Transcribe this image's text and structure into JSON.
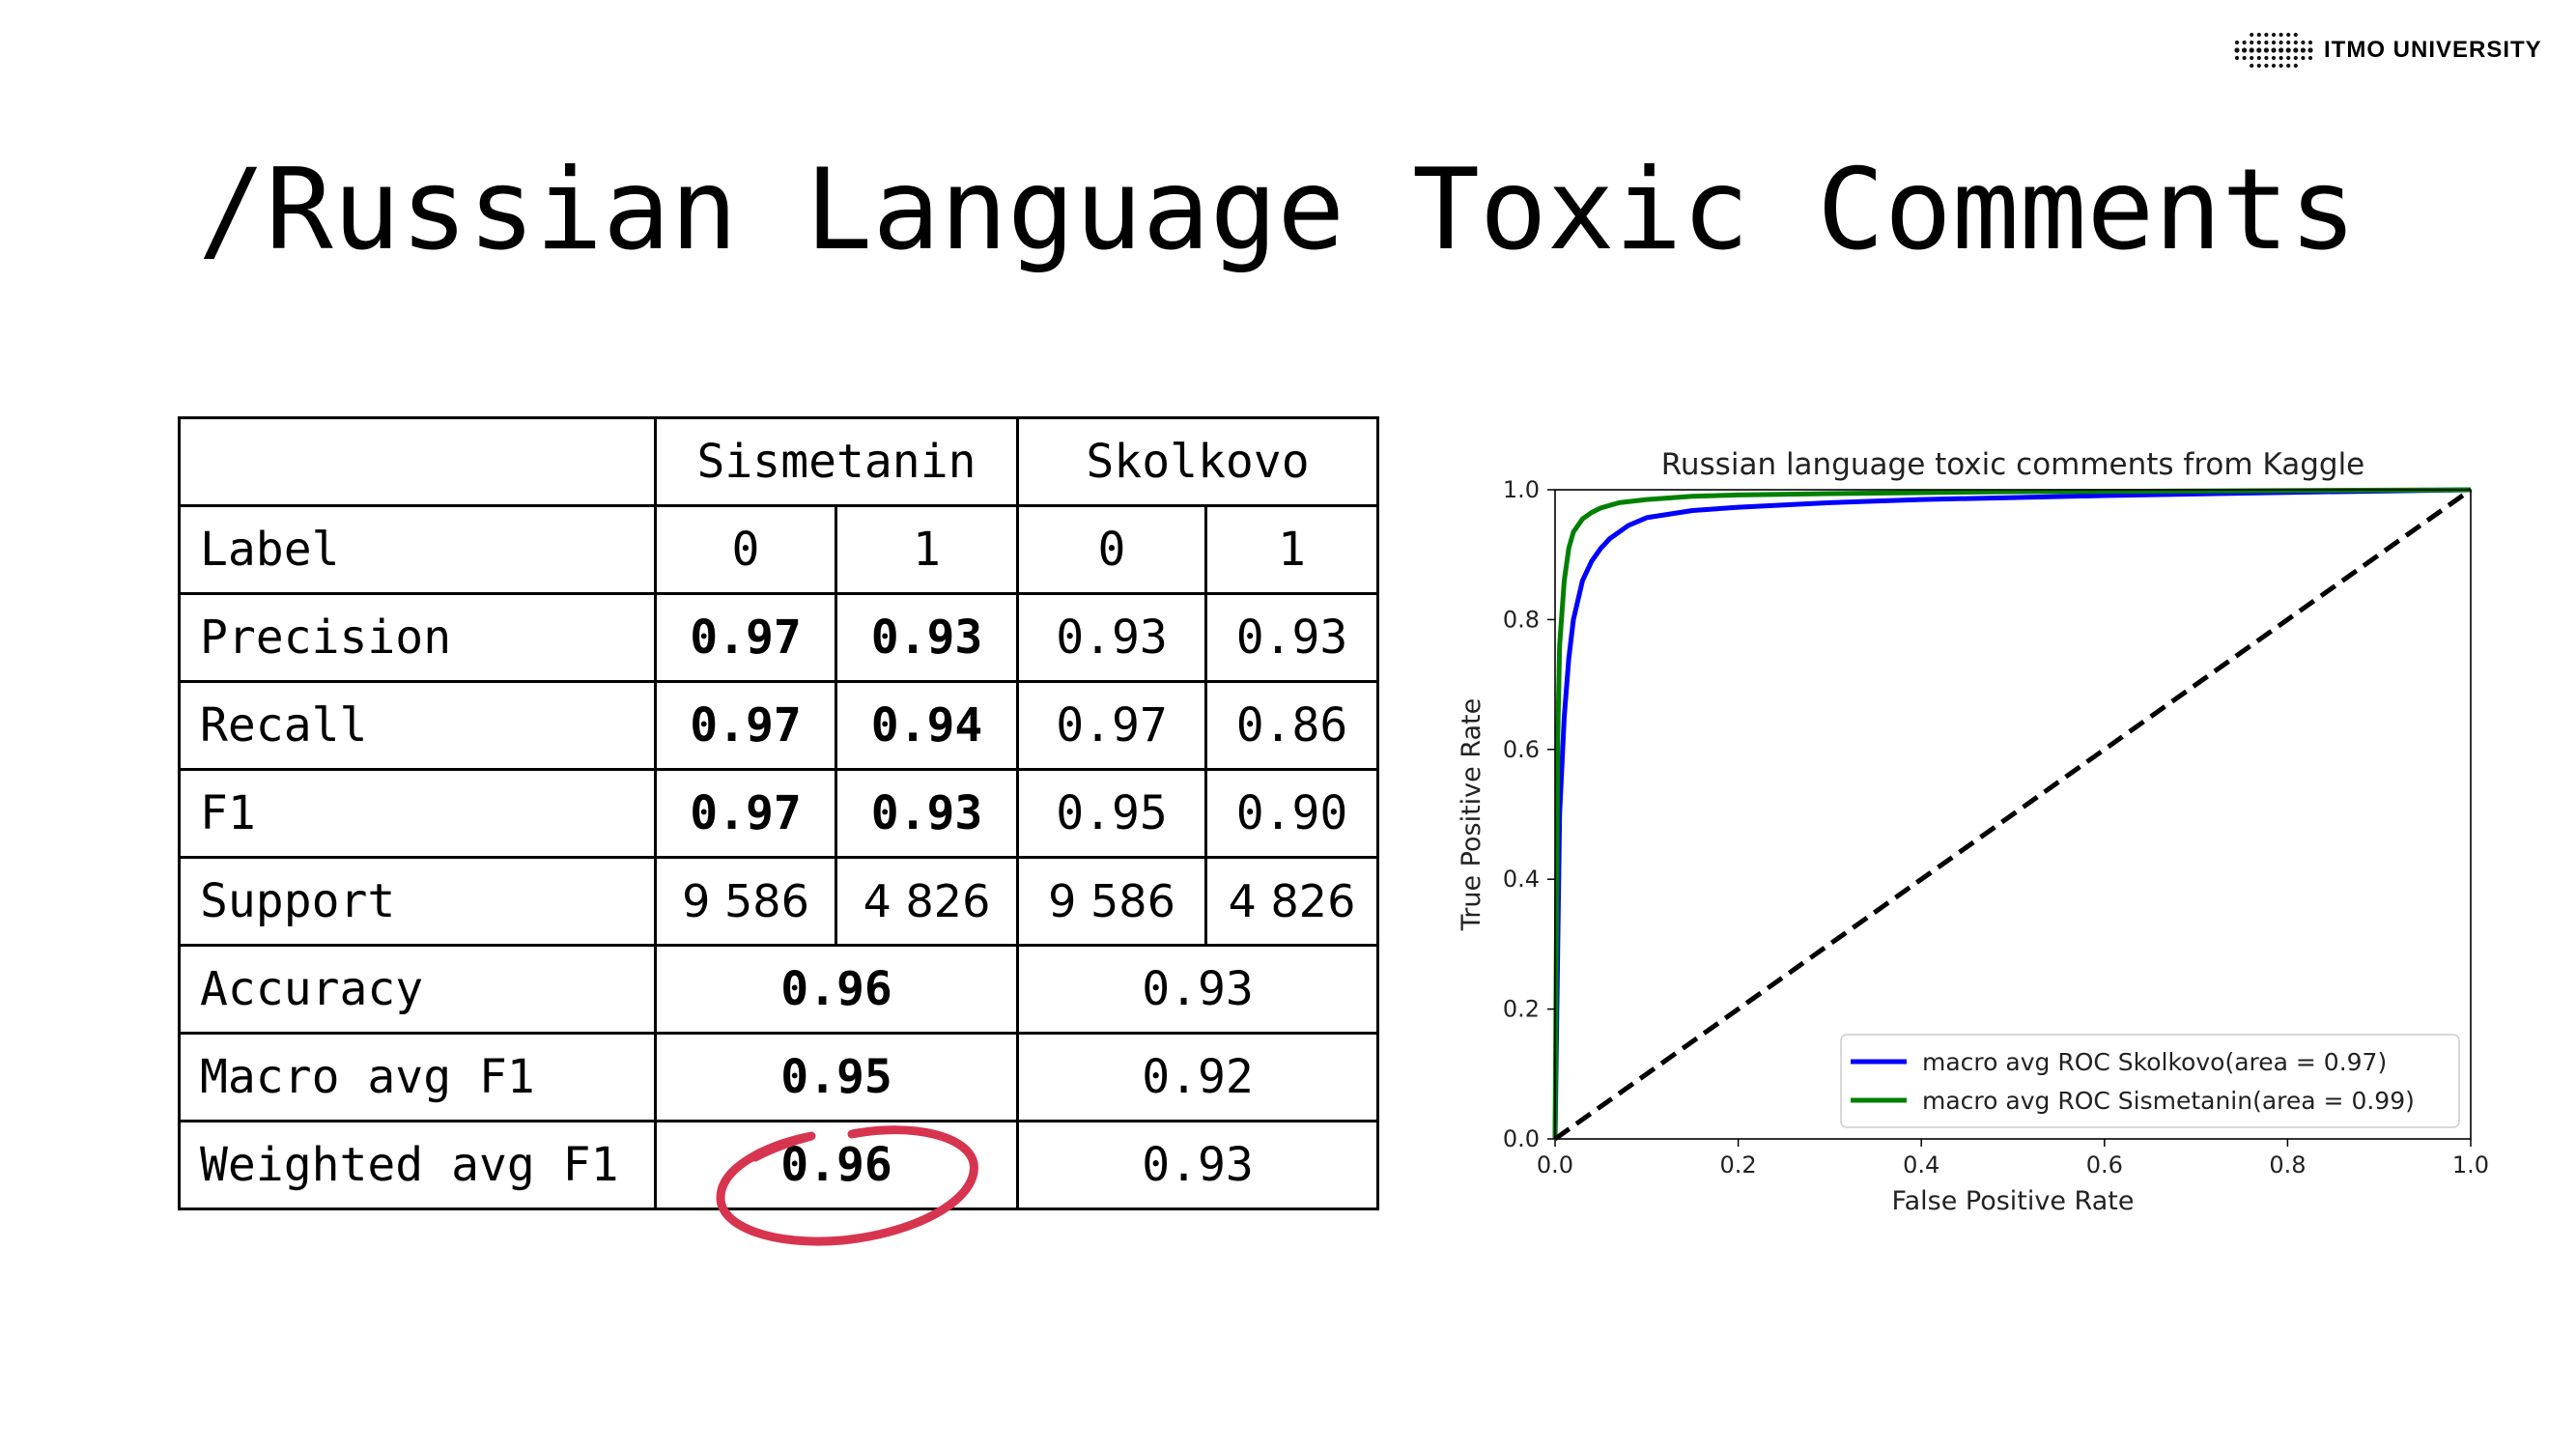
{
  "logo": {
    "text": "ITMO UNIVERSITY",
    "icon": "itmo-dots-logo-icon"
  },
  "title": "/Russian Language Toxic Comments",
  "table": {
    "models": [
      "Sismetanin",
      "Skolkovo"
    ],
    "label_row": {
      "name": "Label",
      "values": [
        "0",
        "1",
        "0",
        "1"
      ]
    },
    "class_rows": [
      {
        "name": "Precision",
        "values": [
          "0.97",
          "0.93",
          "0.93",
          "0.93"
        ]
      },
      {
        "name": "Recall",
        "values": [
          "0.97",
          "0.94",
          "0.97",
          "0.86"
        ]
      },
      {
        "name": "F1",
        "values": [
          "0.97",
          "0.93",
          "0.95",
          "0.90"
        ]
      },
      {
        "name": "Support",
        "values": [
          "9 586",
          "4 826",
          "9 586",
          "4 826"
        ]
      }
    ],
    "summary_rows": [
      {
        "name": "Accuracy",
        "values": [
          "0.96",
          "0.93"
        ]
      },
      {
        "name": "Macro avg F1",
        "values": [
          "0.95",
          "0.92"
        ]
      },
      {
        "name": "Weighted avg F1",
        "values": [
          "0.96",
          "0.93"
        ]
      }
    ],
    "highlight_color": "#d7354f"
  },
  "chart_data": {
    "type": "line",
    "title": "Russian language toxic comments from Kaggle",
    "xlabel": "False Positive Rate",
    "ylabel": "True Positive Rate",
    "xlim": [
      0,
      1
    ],
    "ylim": [
      0,
      1
    ],
    "xticks": [
      "0.0",
      "0.2",
      "0.4",
      "0.6",
      "0.8",
      "1.0"
    ],
    "yticks": [
      "0.0",
      "0.2",
      "0.4",
      "0.6",
      "0.8",
      "1.0"
    ],
    "grid": false,
    "legend_position": "bottom-right",
    "series": [
      {
        "name": "macro avg ROC Skolkovo(area = 0.97)",
        "color": "#0000ff",
        "x": [
          0,
          0.005,
          0.01,
          0.015,
          0.02,
          0.03,
          0.04,
          0.05,
          0.06,
          0.08,
          0.1,
          0.15,
          0.2,
          0.3,
          0.4,
          0.5,
          0.6,
          0.8,
          1.0
        ],
        "y": [
          0,
          0.5,
          0.65,
          0.74,
          0.8,
          0.86,
          0.89,
          0.91,
          0.925,
          0.945,
          0.957,
          0.968,
          0.973,
          0.98,
          0.985,
          0.988,
          0.991,
          0.996,
          1.0
        ]
      },
      {
        "name": "macro avg ROC Sismetanin(area = 0.99)",
        "color": "#008000",
        "x": [
          0,
          0.003,
          0.005,
          0.01,
          0.015,
          0.02,
          0.03,
          0.04,
          0.05,
          0.07,
          0.1,
          0.15,
          0.2,
          0.3,
          0.5,
          0.7,
          1.0
        ],
        "y": [
          0,
          0.62,
          0.76,
          0.86,
          0.91,
          0.935,
          0.955,
          0.965,
          0.972,
          0.98,
          0.985,
          0.99,
          0.992,
          0.994,
          0.997,
          0.998,
          1.0
        ]
      },
      {
        "name": "",
        "color": "#000000",
        "style": "dashed",
        "x": [
          0,
          1
        ],
        "y": [
          0,
          1
        ]
      }
    ]
  }
}
